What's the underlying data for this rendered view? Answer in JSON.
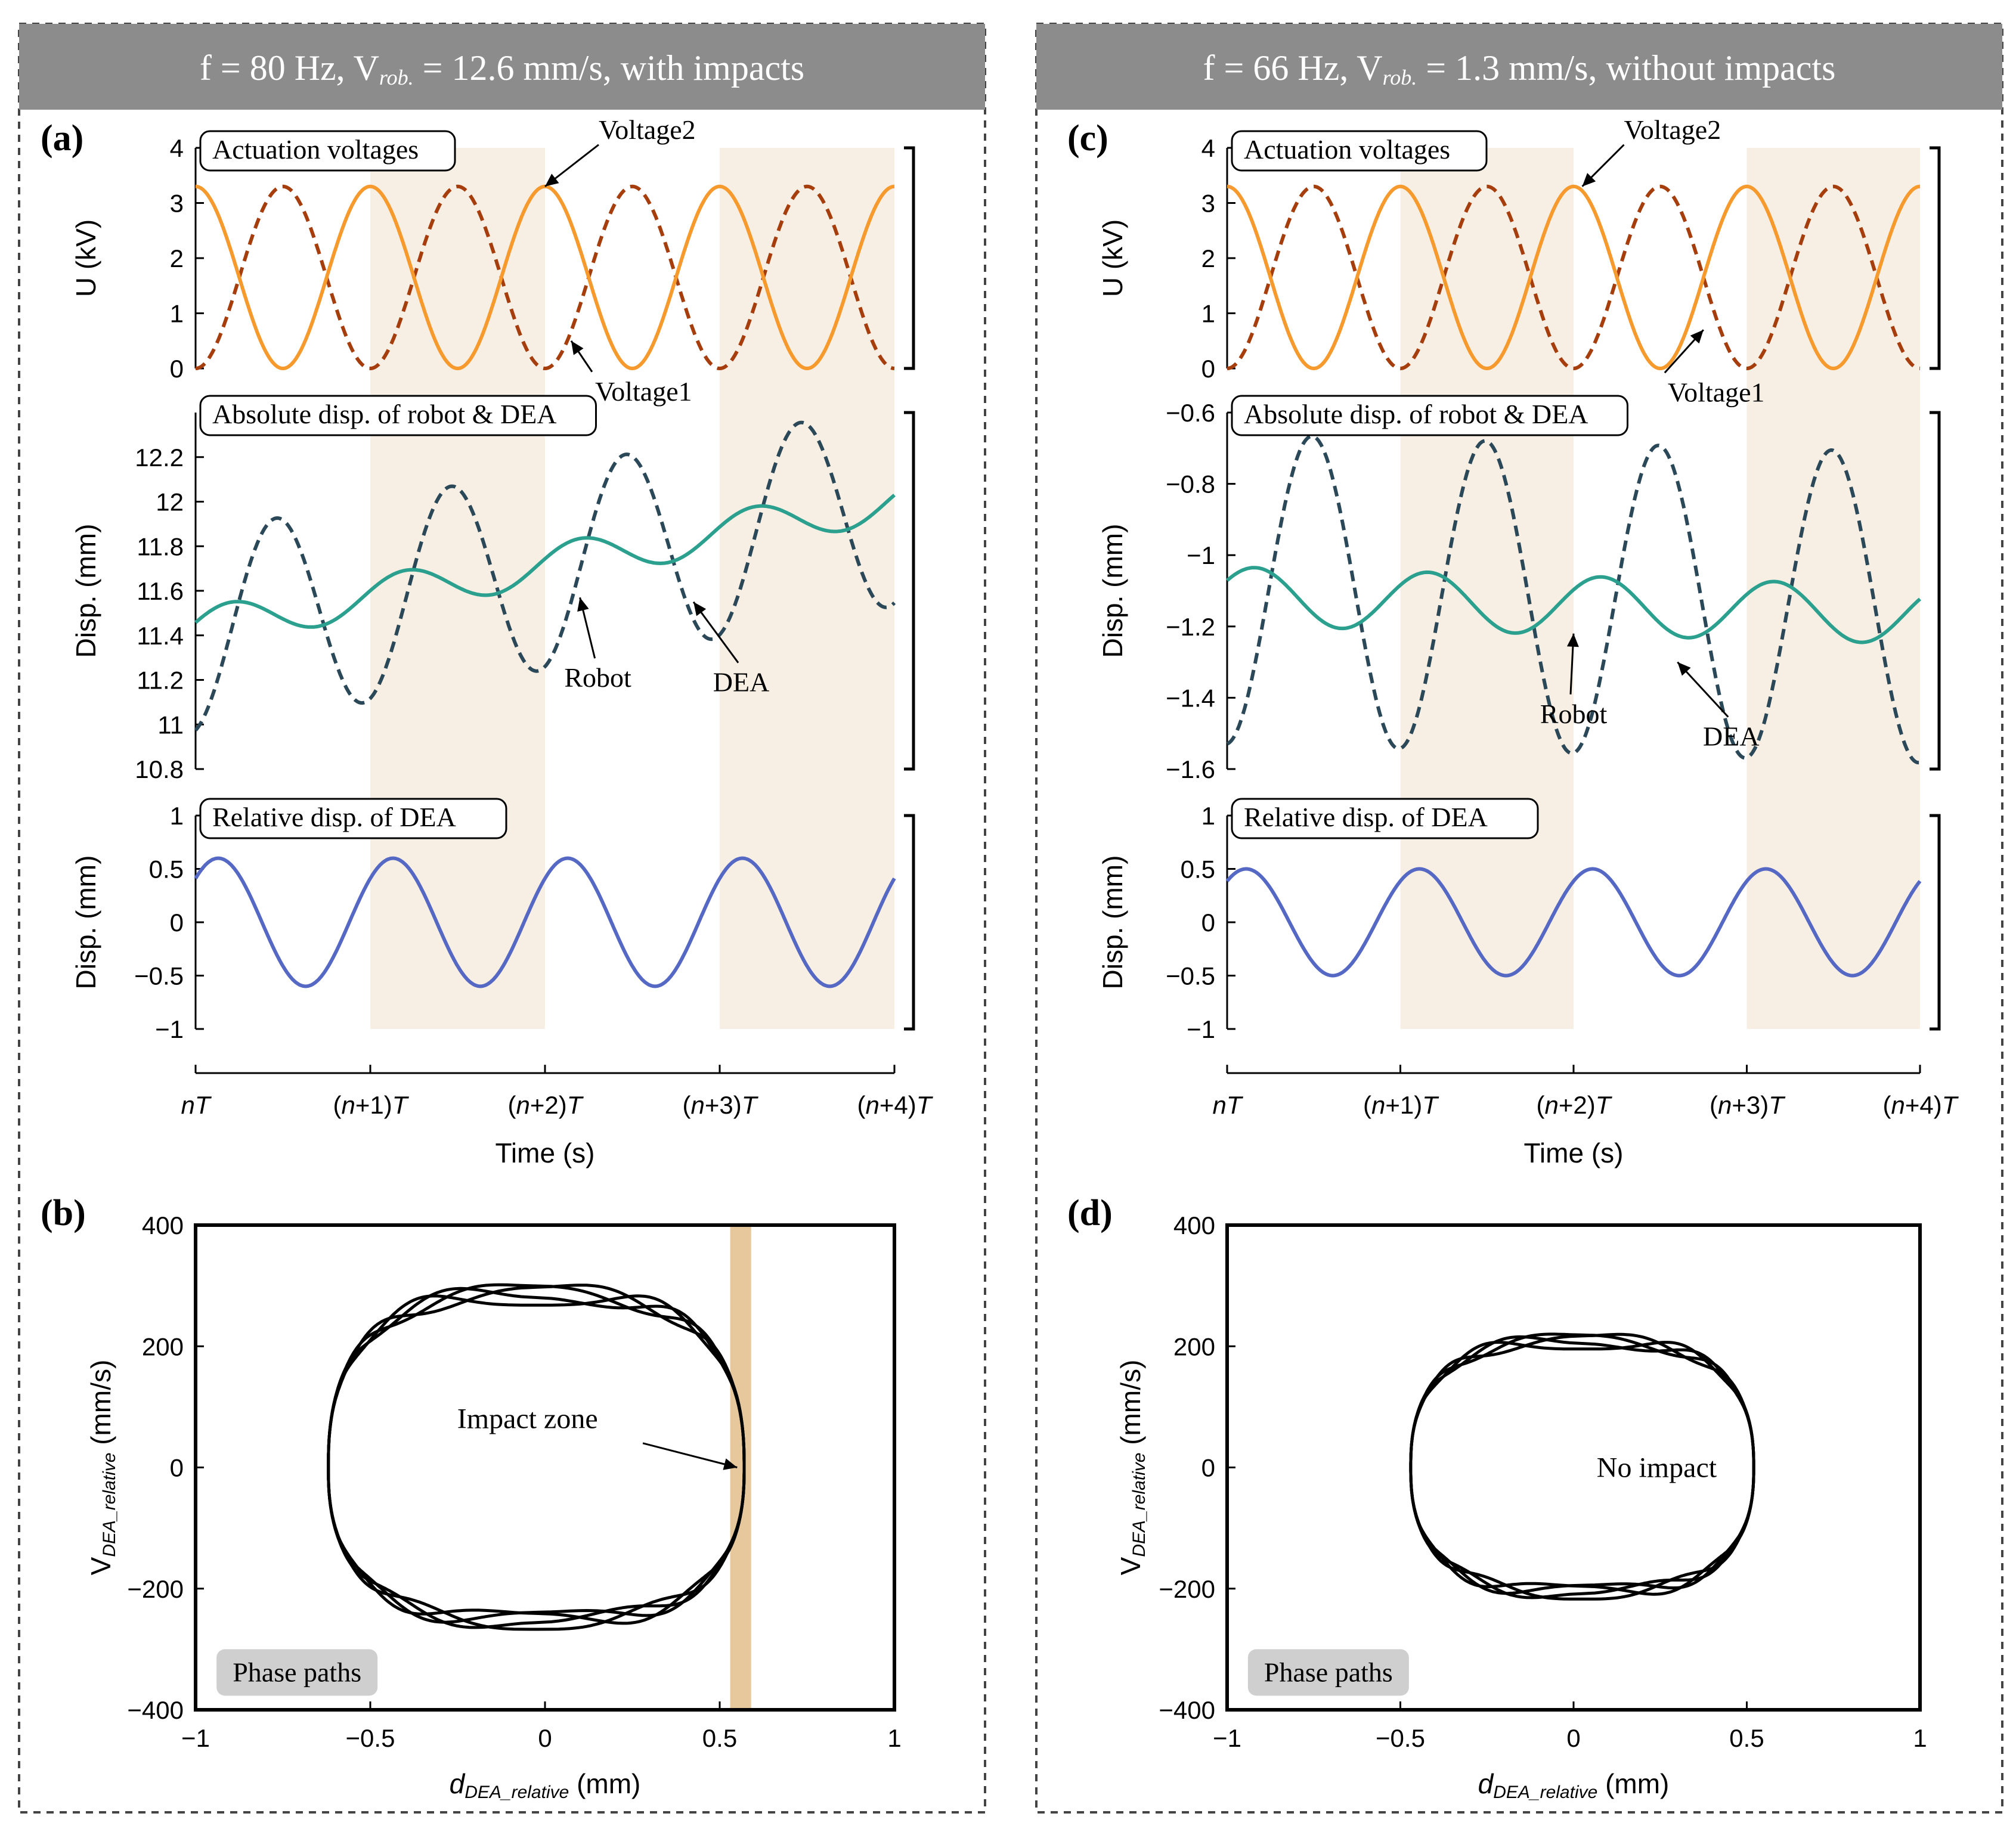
{
  "colors": {
    "header_bg": "#8c8c8c",
    "header_text": "#ffffff",
    "voltage1": "#a63d0c",
    "voltage2": "#f79a2e",
    "dea_abs": "#2a4858",
    "robot": "#2ba08e",
    "relative": "#5468c4",
    "shade": "#f8efe4",
    "impact_zone": "#e7c89c",
    "phase_label_bg": "#cfcfcf",
    "phase": "#000000"
  },
  "panels": {
    "left": {
      "header": "f = 80 Hz, V",
      "header_sub": "rob.",
      "header_tail": " = 12.6 mm/s, with impacts",
      "top_label": "(a)",
      "bottom_label": "(b)"
    },
    "right": {
      "header": "f = 66 Hz, V",
      "header_sub": "rob.",
      "header_tail": " = 1.3 mm/s, without impacts",
      "top_label": "(c)",
      "bottom_label": "(d)"
    }
  },
  "chart_data": [
    {
      "id": "a1",
      "type": "line",
      "title": "Actuation voltages",
      "ylabel": "U (kV)",
      "ylim": [
        0,
        4
      ],
      "yticks": [
        0,
        1,
        2,
        3,
        4
      ],
      "x_periods": [
        0,
        4
      ],
      "series": [
        {
          "name": "Voltage1",
          "style": "dashed",
          "color_key": "voltage1",
          "amplitude": 3.3,
          "offset": 0,
          "phase": 0.0,
          "freq": 2
        },
        {
          "name": "Voltage2",
          "style": "solid",
          "color_key": "voltage2",
          "amplitude": 3.3,
          "offset": 0,
          "phase": 0.5,
          "freq": 2
        }
      ],
      "annotations": [
        {
          "text": "Voltage2",
          "points_to": [
            2.0,
            3.3
          ]
        },
        {
          "text": "Voltage1",
          "points_to": [
            2.15,
            0.5
          ]
        }
      ]
    },
    {
      "id": "a2",
      "type": "line",
      "title": "Absolute disp. of robot & DEA",
      "ylabel": "Disp. (mm)",
      "ylim": [
        10.8,
        12.4
      ],
      "yticks": [
        10.8,
        11,
        11.2,
        11.4,
        11.6,
        11.8,
        12,
        12.2
      ],
      "x_periods": [
        0,
        4
      ],
      "series": [
        {
          "name": "DEA",
          "style": "dashed",
          "color_key": "dea_abs",
          "mean_start": 11.41,
          "mean_slope": 0.143,
          "amplitude": 0.45,
          "cycles": 4,
          "phase": 0.21
        },
        {
          "name": "Robot",
          "style": "solid",
          "color_key": "robot",
          "mean_start": 11.43,
          "mean_slope": 0.143,
          "amplitude": 0.09,
          "cycles": 4,
          "phase": 0.95
        }
      ],
      "annotations": [
        {
          "text": "Robot",
          "points_to": [
            2.2,
            11.57
          ]
        },
        {
          "text": "DEA",
          "points_to": [
            2.85,
            11.55
          ]
        }
      ]
    },
    {
      "id": "a3",
      "type": "line",
      "title": "Relative disp. of  DEA",
      "ylabel": "Disp. (mm)",
      "ylim": [
        -1,
        1
      ],
      "yticks": [
        -1,
        -0.5,
        0,
        0.5,
        1
      ],
      "x_periods": [
        0,
        4
      ],
      "series": [
        {
          "name": "Relative disp.",
          "style": "solid",
          "color_key": "relative",
          "amplitude": 0.6,
          "offset": 0,
          "cycles": 4,
          "phase": 0.12
        }
      ]
    },
    {
      "id": "c1",
      "type": "line",
      "title": "Actuation voltages",
      "ylabel": "U (kV)",
      "ylim": [
        0,
        4
      ],
      "yticks": [
        0,
        1,
        2,
        3,
        4
      ],
      "x_periods": [
        0,
        4
      ],
      "series": [
        {
          "name": "Voltage1",
          "style": "dashed",
          "color_key": "voltage1",
          "amplitude": 3.3,
          "offset": 0,
          "phase": 0.0,
          "freq": 2
        },
        {
          "name": "Voltage2",
          "style": "solid",
          "color_key": "voltage2",
          "amplitude": 3.3,
          "offset": 0,
          "phase": 0.5,
          "freq": 2
        }
      ],
      "annotations": [
        {
          "text": "Voltage2",
          "points_to": [
            2.05,
            3.3
          ]
        },
        {
          "text": "Voltage1",
          "points_to": [
            2.75,
            0.7
          ]
        }
      ]
    },
    {
      "id": "c2",
      "type": "line",
      "title": "Absolute disp. of robot & DEA",
      "ylabel": "Disp. (mm)",
      "ylim": [
        -1.6,
        -0.6
      ],
      "yticks": [
        -1.6,
        -1.4,
        -1.2,
        -1,
        -0.8,
        -0.6
      ],
      "x_periods": [
        0,
        4
      ],
      "series": [
        {
          "name": "DEA",
          "style": "dashed",
          "color_key": "dea_abs",
          "mean_start": -1.095,
          "mean_slope": -0.013,
          "amplitude": 0.435,
          "cycles": 4,
          "phase": 0.24
        },
        {
          "name": "Robot",
          "style": "solid",
          "color_key": "robot",
          "mean_start": -1.115,
          "mean_slope": -0.013,
          "amplitude": 0.082,
          "cycles": 4,
          "phase": 0.91
        }
      ],
      "annotations": [
        {
          "text": "Robot",
          "points_to": [
            2.0,
            -1.22
          ]
        },
        {
          "text": "DEA",
          "points_to": [
            2.6,
            -1.3
          ]
        }
      ]
    },
    {
      "id": "c3",
      "type": "line",
      "title": "Relative disp. of  DEA",
      "ylabel": "Disp. (mm)",
      "ylim": [
        -1,
        1
      ],
      "yticks": [
        -1,
        -0.5,
        0,
        0.5,
        1
      ],
      "x_periods": [
        0,
        4
      ],
      "series": [
        {
          "name": "Relative disp.",
          "style": "solid",
          "color_key": "relative",
          "amplitude": 0.5,
          "offset": 0,
          "cycles": 4,
          "phase": 0.14
        }
      ]
    },
    {
      "id": "b",
      "type": "scatter",
      "subtype": "phase-path",
      "xlabel": "d",
      "xlabel_sub": "DEA_relative",
      "xlabel_tail": " (mm)",
      "ylabel": "V",
      "ylabel_sub": "DEA_relative",
      "ylabel_tail": " (mm/s)",
      "xlim": [
        -1,
        1
      ],
      "ylim": [
        -400,
        400
      ],
      "xticks": [
        -1,
        -0.5,
        0,
        0.5,
        1
      ],
      "yticks": [
        -400,
        -200,
        0,
        200,
        400
      ],
      "loop": {
        "x_min": -0.62,
        "x_max": 0.57,
        "v_max": 285,
        "v_min": -252,
        "loops": 4
      },
      "impact_zone_x": [
        0.53,
        0.59
      ],
      "annotation": "Impact zone",
      "legend_label": "Phase paths"
    },
    {
      "id": "d",
      "type": "scatter",
      "subtype": "phase-path",
      "xlabel": "d",
      "xlabel_sub": "DEA_relative",
      "xlabel_tail": " (mm)",
      "ylabel": "V",
      "ylabel_sub": "DEA_relative",
      "ylabel_tail": " (mm/s)",
      "xlim": [
        -1,
        1
      ],
      "ylim": [
        -400,
        400
      ],
      "xticks": [
        -1,
        -0.5,
        0,
        0.5,
        1
      ],
      "yticks": [
        -400,
        -200,
        0,
        200,
        400
      ],
      "loop": {
        "x_min": -0.47,
        "x_max": 0.52,
        "v_max": 208,
        "v_min": -205,
        "loops": 4
      },
      "annotation": "No impact",
      "legend_label": "Phase paths"
    }
  ],
  "time_axis": {
    "label": "Time (s)",
    "ticks": [
      {
        "n": "n",
        "suffix": "T"
      },
      {
        "n": "(n+1)",
        "suffix": "T"
      },
      {
        "n": "(n+2)",
        "suffix": "T"
      },
      {
        "n": "(n+3)",
        "suffix": "T"
      },
      {
        "n": "(n+4)",
        "suffix": "T"
      }
    ]
  }
}
